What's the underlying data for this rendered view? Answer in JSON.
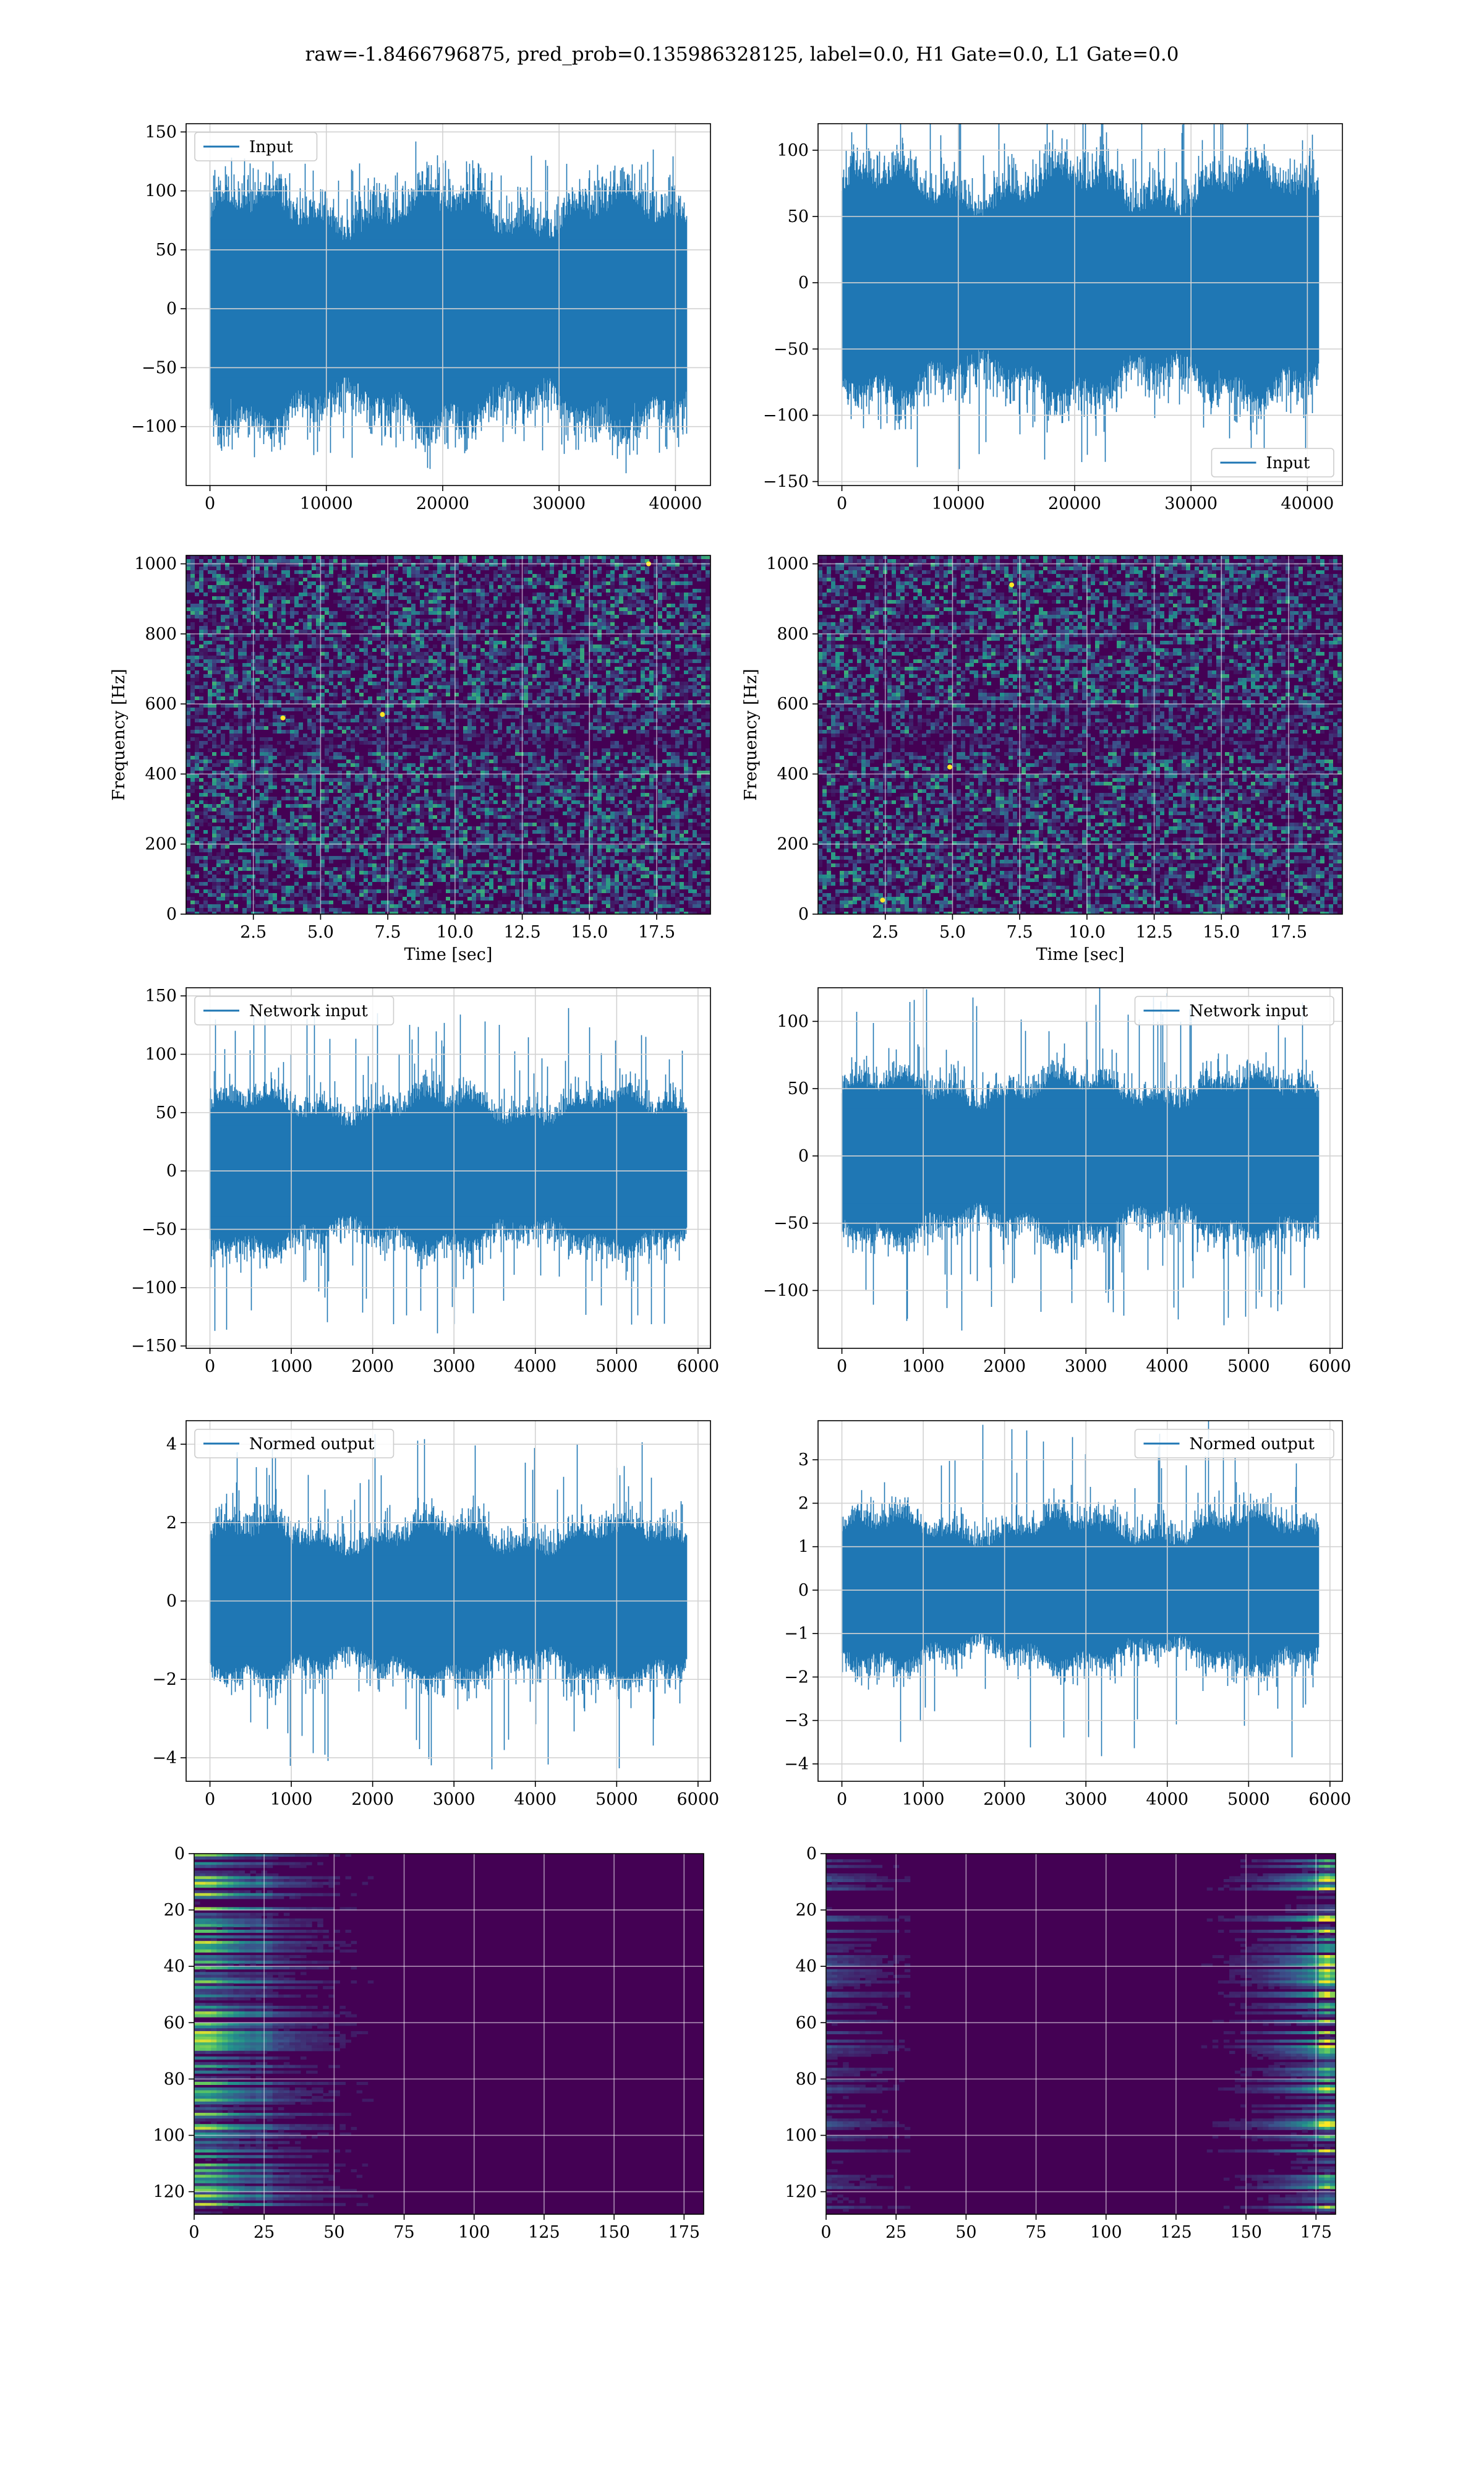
{
  "figure": {
    "title": "raw=-1.8466796875, pred_prob=0.135986328125, label=0.0, H1 Gate=0.0, L1 Gate=0.0"
  },
  "colors": {
    "series": "#1f77b4",
    "viridis_dark": "#440154",
    "viridis_blue": "#31688e",
    "viridis_green": "#35b779",
    "viridis_yellow": "#fde725"
  },
  "chart_data": [
    {
      "id": "input_h1",
      "type": "line",
      "panel": "r0c0",
      "series": [
        {
          "name": "Input",
          "x_range": [
            0,
            40960
          ],
          "amp_core": 75,
          "amp_peak": 130
        }
      ],
      "xlim": [
        -2048,
        43008
      ],
      "ylim": [
        -150,
        157
      ],
      "xticks": [
        0,
        10000,
        20000,
        30000,
        40000
      ],
      "xticklabels": [
        "0",
        "10000",
        "20000",
        "30000",
        "40000"
      ],
      "yticks": [
        -100,
        -50,
        0,
        50,
        100,
        150
      ],
      "yticklabels": [
        "−100",
        "−50",
        "0",
        "50",
        "100",
        "150"
      ],
      "legend": "top-left",
      "grid": true,
      "xlabel": "",
      "ylabel": ""
    },
    {
      "id": "input_l1",
      "type": "line",
      "panel": "r0c1",
      "series": [
        {
          "name": "Input",
          "x_range": [
            0,
            40960
          ],
          "amp_core": 65,
          "amp_peak": 145
        }
      ],
      "xlim": [
        -2048,
        43008
      ],
      "ylim": [
        -153,
        120
      ],
      "xticks": [
        0,
        10000,
        20000,
        30000,
        40000
      ],
      "xticklabels": [
        "0",
        "10000",
        "20000",
        "30000",
        "40000"
      ],
      "yticks": [
        -150,
        -100,
        -50,
        0,
        50,
        100
      ],
      "yticklabels": [
        "−150",
        "−100",
        "−50",
        "0",
        "50",
        "100"
      ],
      "legend": "bottom-right",
      "grid": true,
      "xlabel": "",
      "ylabel": ""
    },
    {
      "id": "spec_h1",
      "type": "heatmap",
      "panel": "r1c0",
      "xlim": [
        0,
        19.5
      ],
      "ylim": [
        0,
        1024
      ],
      "xticks": [
        2.5,
        5.0,
        7.5,
        10.0,
        12.5,
        15.0,
        17.5
      ],
      "xticklabels": [
        "2.5",
        "5.0",
        "7.5",
        "10.0",
        "12.5",
        "15.0",
        "17.5"
      ],
      "yticks": [
        0,
        200,
        400,
        600,
        800,
        1000
      ],
      "yticklabels": [
        "0",
        "200",
        "400",
        "600",
        "800",
        "1000"
      ],
      "xlabel": "Time [sec]",
      "ylabel": "Frequency [Hz]",
      "grid": true,
      "hot_spots": [
        {
          "x": 3.6,
          "y": 560
        },
        {
          "x": 7.3,
          "y": 570
        },
        {
          "x": 17.2,
          "y": 1000
        }
      ]
    },
    {
      "id": "spec_l1",
      "type": "heatmap",
      "panel": "r1c1",
      "xlim": [
        0,
        19.5
      ],
      "ylim": [
        0,
        1024
      ],
      "xticks": [
        2.5,
        5.0,
        7.5,
        10.0,
        12.5,
        15.0,
        17.5
      ],
      "xticklabels": [
        "2.5",
        "5.0",
        "7.5",
        "10.0",
        "12.5",
        "15.0",
        "17.5"
      ],
      "yticks": [
        0,
        200,
        400,
        600,
        800,
        1000
      ],
      "yticklabels": [
        "0",
        "200",
        "400",
        "600",
        "800",
        "1000"
      ],
      "xlabel": "Time [sec]",
      "ylabel": "Frequency [Hz]",
      "grid": true,
      "hot_spots": [
        {
          "x": 4.9,
          "y": 420
        },
        {
          "x": 7.2,
          "y": 940
        },
        {
          "x": 2.4,
          "y": 40
        }
      ]
    },
    {
      "id": "netin_h1",
      "type": "line",
      "panel": "r2c0",
      "series": [
        {
          "name": "Network input",
          "x_range": [
            0,
            5860
          ],
          "amp_core": 50,
          "amp_peak": 140
        }
      ],
      "xlim": [
        -293,
        6153
      ],
      "ylim": [
        -152,
        157
      ],
      "xticks": [
        0,
        1000,
        2000,
        3000,
        4000,
        5000,
        6000
      ],
      "xticklabels": [
        "0",
        "1000",
        "2000",
        "3000",
        "4000",
        "5000",
        "6000"
      ],
      "yticks": [
        -150,
        -100,
        -50,
        0,
        50,
        100,
        150
      ],
      "yticklabels": [
        "−150",
        "−100",
        "−50",
        "0",
        "50",
        "100",
        "150"
      ],
      "legend": "top-left",
      "grid": true,
      "xlabel": "",
      "ylabel": ""
    },
    {
      "id": "netin_l1",
      "type": "line",
      "panel": "r2c1",
      "series": [
        {
          "name": "Network input",
          "x_range": [
            0,
            5860
          ],
          "amp_core": 45,
          "amp_peak": 130
        }
      ],
      "xlim": [
        -293,
        6153
      ],
      "ylim": [
        -143,
        125
      ],
      "xticks": [
        0,
        1000,
        2000,
        3000,
        4000,
        5000,
        6000
      ],
      "xticklabels": [
        "0",
        "1000",
        "2000",
        "3000",
        "4000",
        "5000",
        "6000"
      ],
      "yticks": [
        -100,
        -50,
        0,
        50,
        100
      ],
      "yticklabels": [
        "−100",
        "−50",
        "0",
        "50",
        "100"
      ],
      "legend": "top-right",
      "grid": true,
      "xlabel": "",
      "ylabel": ""
    },
    {
      "id": "norm_h1",
      "type": "line",
      "panel": "r3c0",
      "series": [
        {
          "name": "Normed output",
          "x_range": [
            0,
            5860
          ],
          "amp_core": 1.5,
          "amp_peak": 4.3
        }
      ],
      "xlim": [
        -293,
        6153
      ],
      "ylim": [
        -4.6,
        4.6
      ],
      "xticks": [
        0,
        1000,
        2000,
        3000,
        4000,
        5000,
        6000
      ],
      "xticklabels": [
        "0",
        "1000",
        "2000",
        "3000",
        "4000",
        "5000",
        "6000"
      ],
      "yticks": [
        -4,
        -2,
        0,
        2,
        4
      ],
      "yticklabels": [
        "−4",
        "−2",
        "0",
        "2",
        "4"
      ],
      "legend": "top-left",
      "grid": true,
      "xlabel": "",
      "ylabel": ""
    },
    {
      "id": "norm_l1",
      "type": "line",
      "panel": "r3c1",
      "series": [
        {
          "name": "Normed output",
          "x_range": [
            0,
            5860
          ],
          "amp_core": 1.3,
          "amp_peak": 3.9
        }
      ],
      "xlim": [
        -293,
        6153
      ],
      "ylim": [
        -4.4,
        3.9
      ],
      "xticks": [
        0,
        1000,
        2000,
        3000,
        4000,
        5000,
        6000
      ],
      "xticklabels": [
        "0",
        "1000",
        "2000",
        "3000",
        "4000",
        "5000",
        "6000"
      ],
      "yticks": [
        -4,
        -3,
        -2,
        -1,
        0,
        1,
        2,
        3
      ],
      "yticklabels": [
        "−4",
        "−3",
        "−2",
        "−1",
        "0",
        "1",
        "2",
        "3"
      ],
      "legend": "top-right",
      "grid": true,
      "xlabel": "",
      "ylabel": ""
    },
    {
      "id": "feat_h1",
      "type": "heatmap",
      "panel": "r4c0",
      "xlim": [
        0,
        182
      ],
      "ylim": [
        128,
        0
      ],
      "grid_shape": [
        128,
        182
      ],
      "xticks": [
        0,
        25,
        50,
        75,
        100,
        125,
        150,
        175
      ],
      "xticklabels": [
        "0",
        "25",
        "50",
        "75",
        "100",
        "125",
        "150",
        "175"
      ],
      "yticks": [
        0,
        20,
        40,
        60,
        80,
        100,
        120
      ],
      "yticklabels": [
        "0",
        "20",
        "40",
        "60",
        "80",
        "100",
        "120"
      ],
      "bright_region": "left",
      "bright_column": 24,
      "grid": true,
      "xlabel": "",
      "ylabel": ""
    },
    {
      "id": "feat_l1",
      "type": "heatmap",
      "panel": "r4c1",
      "xlim": [
        0,
        182
      ],
      "ylim": [
        128,
        0
      ],
      "grid_shape": [
        128,
        182
      ],
      "xticks": [
        0,
        25,
        50,
        75,
        100,
        125,
        150,
        175
      ],
      "xticklabels": [
        "0",
        "25",
        "50",
        "75",
        "100",
        "125",
        "150",
        "175"
      ],
      "yticks": [
        0,
        20,
        40,
        60,
        80,
        100,
        120
      ],
      "yticklabels": [
        "0",
        "20",
        "40",
        "60",
        "80",
        "100",
        "120"
      ],
      "bright_region": "right",
      "bright_column": 177,
      "grid": true,
      "xlabel": "",
      "ylabel": ""
    }
  ]
}
